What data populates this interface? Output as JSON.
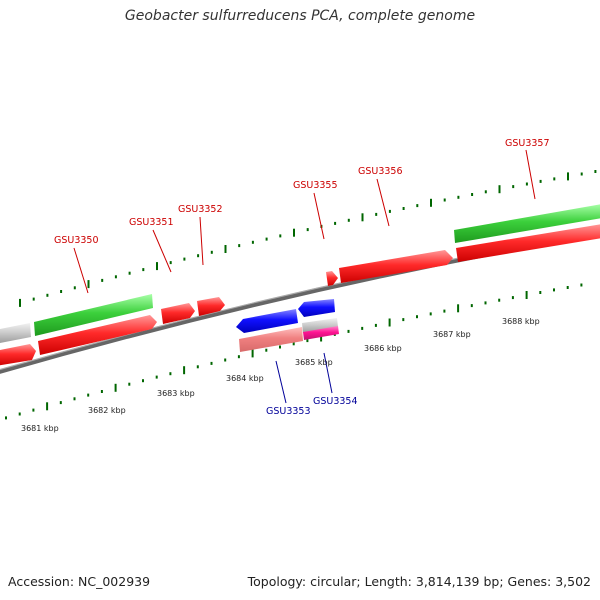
{
  "title": "Geobacter sulfurreducens PCA, complete genome",
  "footer": {
    "accession": "Accession: NC_002939",
    "topology": "Topology: circular; Length: 3,814,139 bp; Genes: 3,502"
  },
  "colors": {
    "forward_label": "#cc0000",
    "reverse_label": "#000099",
    "cds": "#ff0000",
    "gene": "#33cc33",
    "reverse_cds": "#0000ff",
    "trna": "#ff1493",
    "pseudo": "#f08080",
    "other": "#bbbbbb",
    "tick": "#006600",
    "backbone": "#777777"
  },
  "scale_labels": [
    "3681 kbp",
    "3682 kbp",
    "3683 kbp",
    "3684 kbp",
    "3685 kbp",
    "3686 kbp",
    "3687 kbp",
    "3688 kbp"
  ],
  "gene_labels": {
    "forward": [
      "GSU3350",
      "GSU3351",
      "GSU3352",
      "GSU3355",
      "GSU3356",
      "GSU3357"
    ],
    "reverse": [
      "GSU3353",
      "GSU3354"
    ]
  }
}
